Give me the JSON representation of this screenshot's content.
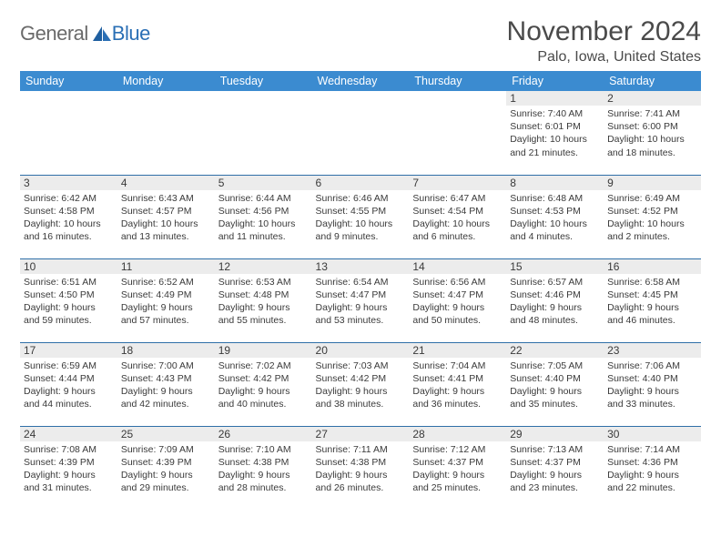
{
  "logo": {
    "general": "General",
    "blue": "Blue"
  },
  "header": {
    "month": "November 2024",
    "location": "Palo, Iowa, United States"
  },
  "colors": {
    "header_bg": "#3b8bd0",
    "header_text": "#ffffff",
    "row_border": "#2f6fa8",
    "daynum_bg": "#ececec",
    "text": "#3a3a3a",
    "logo_gray": "#6a6a6a",
    "logo_blue": "#2a6fb5"
  },
  "dayNames": [
    "Sunday",
    "Monday",
    "Tuesday",
    "Wednesday",
    "Thursday",
    "Friday",
    "Saturday"
  ],
  "weeks": [
    [
      {
        "empty": true
      },
      {
        "empty": true
      },
      {
        "empty": true
      },
      {
        "empty": true
      },
      {
        "empty": true
      },
      {
        "n": "1",
        "sunrise": "Sunrise: 7:40 AM",
        "sunset": "Sunset: 6:01 PM",
        "day1": "Daylight: 10 hours",
        "day2": "and 21 minutes."
      },
      {
        "n": "2",
        "sunrise": "Sunrise: 7:41 AM",
        "sunset": "Sunset: 6:00 PM",
        "day1": "Daylight: 10 hours",
        "day2": "and 18 minutes."
      }
    ],
    [
      {
        "n": "3",
        "sunrise": "Sunrise: 6:42 AM",
        "sunset": "Sunset: 4:58 PM",
        "day1": "Daylight: 10 hours",
        "day2": "and 16 minutes."
      },
      {
        "n": "4",
        "sunrise": "Sunrise: 6:43 AM",
        "sunset": "Sunset: 4:57 PM",
        "day1": "Daylight: 10 hours",
        "day2": "and 13 minutes."
      },
      {
        "n": "5",
        "sunrise": "Sunrise: 6:44 AM",
        "sunset": "Sunset: 4:56 PM",
        "day1": "Daylight: 10 hours",
        "day2": "and 11 minutes."
      },
      {
        "n": "6",
        "sunrise": "Sunrise: 6:46 AM",
        "sunset": "Sunset: 4:55 PM",
        "day1": "Daylight: 10 hours",
        "day2": "and 9 minutes."
      },
      {
        "n": "7",
        "sunrise": "Sunrise: 6:47 AM",
        "sunset": "Sunset: 4:54 PM",
        "day1": "Daylight: 10 hours",
        "day2": "and 6 minutes."
      },
      {
        "n": "8",
        "sunrise": "Sunrise: 6:48 AM",
        "sunset": "Sunset: 4:53 PM",
        "day1": "Daylight: 10 hours",
        "day2": "and 4 minutes."
      },
      {
        "n": "9",
        "sunrise": "Sunrise: 6:49 AM",
        "sunset": "Sunset: 4:52 PM",
        "day1": "Daylight: 10 hours",
        "day2": "and 2 minutes."
      }
    ],
    [
      {
        "n": "10",
        "sunrise": "Sunrise: 6:51 AM",
        "sunset": "Sunset: 4:50 PM",
        "day1": "Daylight: 9 hours",
        "day2": "and 59 minutes."
      },
      {
        "n": "11",
        "sunrise": "Sunrise: 6:52 AM",
        "sunset": "Sunset: 4:49 PM",
        "day1": "Daylight: 9 hours",
        "day2": "and 57 minutes."
      },
      {
        "n": "12",
        "sunrise": "Sunrise: 6:53 AM",
        "sunset": "Sunset: 4:48 PM",
        "day1": "Daylight: 9 hours",
        "day2": "and 55 minutes."
      },
      {
        "n": "13",
        "sunrise": "Sunrise: 6:54 AM",
        "sunset": "Sunset: 4:47 PM",
        "day1": "Daylight: 9 hours",
        "day2": "and 53 minutes."
      },
      {
        "n": "14",
        "sunrise": "Sunrise: 6:56 AM",
        "sunset": "Sunset: 4:47 PM",
        "day1": "Daylight: 9 hours",
        "day2": "and 50 minutes."
      },
      {
        "n": "15",
        "sunrise": "Sunrise: 6:57 AM",
        "sunset": "Sunset: 4:46 PM",
        "day1": "Daylight: 9 hours",
        "day2": "and 48 minutes."
      },
      {
        "n": "16",
        "sunrise": "Sunrise: 6:58 AM",
        "sunset": "Sunset: 4:45 PM",
        "day1": "Daylight: 9 hours",
        "day2": "and 46 minutes."
      }
    ],
    [
      {
        "n": "17",
        "sunrise": "Sunrise: 6:59 AM",
        "sunset": "Sunset: 4:44 PM",
        "day1": "Daylight: 9 hours",
        "day2": "and 44 minutes."
      },
      {
        "n": "18",
        "sunrise": "Sunrise: 7:00 AM",
        "sunset": "Sunset: 4:43 PM",
        "day1": "Daylight: 9 hours",
        "day2": "and 42 minutes."
      },
      {
        "n": "19",
        "sunrise": "Sunrise: 7:02 AM",
        "sunset": "Sunset: 4:42 PM",
        "day1": "Daylight: 9 hours",
        "day2": "and 40 minutes."
      },
      {
        "n": "20",
        "sunrise": "Sunrise: 7:03 AM",
        "sunset": "Sunset: 4:42 PM",
        "day1": "Daylight: 9 hours",
        "day2": "and 38 minutes."
      },
      {
        "n": "21",
        "sunrise": "Sunrise: 7:04 AM",
        "sunset": "Sunset: 4:41 PM",
        "day1": "Daylight: 9 hours",
        "day2": "and 36 minutes."
      },
      {
        "n": "22",
        "sunrise": "Sunrise: 7:05 AM",
        "sunset": "Sunset: 4:40 PM",
        "day1": "Daylight: 9 hours",
        "day2": "and 35 minutes."
      },
      {
        "n": "23",
        "sunrise": "Sunrise: 7:06 AM",
        "sunset": "Sunset: 4:40 PM",
        "day1": "Daylight: 9 hours",
        "day2": "and 33 minutes."
      }
    ],
    [
      {
        "n": "24",
        "sunrise": "Sunrise: 7:08 AM",
        "sunset": "Sunset: 4:39 PM",
        "day1": "Daylight: 9 hours",
        "day2": "and 31 minutes."
      },
      {
        "n": "25",
        "sunrise": "Sunrise: 7:09 AM",
        "sunset": "Sunset: 4:39 PM",
        "day1": "Daylight: 9 hours",
        "day2": "and 29 minutes."
      },
      {
        "n": "26",
        "sunrise": "Sunrise: 7:10 AM",
        "sunset": "Sunset: 4:38 PM",
        "day1": "Daylight: 9 hours",
        "day2": "and 28 minutes."
      },
      {
        "n": "27",
        "sunrise": "Sunrise: 7:11 AM",
        "sunset": "Sunset: 4:38 PM",
        "day1": "Daylight: 9 hours",
        "day2": "and 26 minutes."
      },
      {
        "n": "28",
        "sunrise": "Sunrise: 7:12 AM",
        "sunset": "Sunset: 4:37 PM",
        "day1": "Daylight: 9 hours",
        "day2": "and 25 minutes."
      },
      {
        "n": "29",
        "sunrise": "Sunrise: 7:13 AM",
        "sunset": "Sunset: 4:37 PM",
        "day1": "Daylight: 9 hours",
        "day2": "and 23 minutes."
      },
      {
        "n": "30",
        "sunrise": "Sunrise: 7:14 AM",
        "sunset": "Sunset: 4:36 PM",
        "day1": "Daylight: 9 hours",
        "day2": "and 22 minutes."
      }
    ]
  ]
}
